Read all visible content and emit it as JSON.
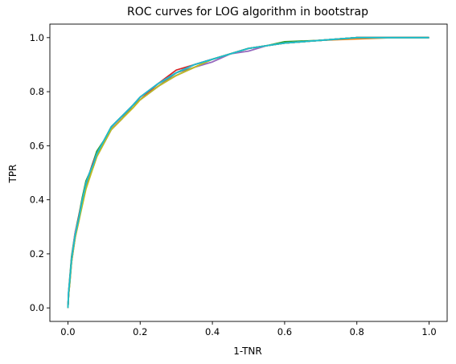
{
  "chart_data": {
    "type": "line",
    "title": "ROC curves for LOG algorithm in bootstrap",
    "xlabel": "1-TNR",
    "ylabel": "TPR",
    "xlim": [
      -0.05,
      1.05
    ],
    "ylim": [
      -0.05,
      1.05
    ],
    "xticks": [
      0.0,
      0.2,
      0.4,
      0.6,
      0.8,
      1.0
    ],
    "yticks": [
      0.0,
      0.2,
      0.4,
      0.6,
      0.8,
      1.0
    ],
    "xtick_labels": [
      "0.0",
      "0.2",
      "0.4",
      "0.6",
      "0.8",
      "1.0"
    ],
    "ytick_labels": [
      "0.0",
      "0.2",
      "0.4",
      "0.6",
      "0.8",
      "1.0"
    ],
    "grid": false,
    "legend": "none",
    "series_colors": [
      "#1f77b4",
      "#ff7f0e",
      "#2ca02c",
      "#d62728",
      "#9467bd",
      "#8c564b",
      "#e377c2",
      "#7f7f7f",
      "#bcbd22",
      "#17becf"
    ],
    "series": [
      {
        "x": [
          0.0,
          0.002,
          0.005,
          0.01,
          0.02,
          0.03,
          0.04,
          0.05,
          0.06,
          0.07,
          0.08,
          0.1,
          0.12,
          0.15,
          0.18,
          0.2,
          0.25,
          0.3,
          0.35,
          0.4,
          0.45,
          0.5,
          0.55,
          0.6,
          0.7,
          0.8,
          0.9,
          1.0
        ],
        "y": [
          0.0,
          0.06,
          0.1,
          0.18,
          0.27,
          0.33,
          0.4,
          0.46,
          0.5,
          0.53,
          0.57,
          0.62,
          0.66,
          0.71,
          0.75,
          0.77,
          0.82,
          0.87,
          0.9,
          0.92,
          0.94,
          0.96,
          0.97,
          0.98,
          0.99,
          1.0,
          1.0,
          1.0
        ]
      },
      {
        "x": [
          0.0,
          0.002,
          0.005,
          0.01,
          0.02,
          0.03,
          0.04,
          0.05,
          0.06,
          0.07,
          0.08,
          0.1,
          0.12,
          0.15,
          0.18,
          0.2,
          0.25,
          0.3,
          0.35,
          0.4,
          0.45,
          0.5,
          0.55,
          0.6,
          0.7,
          0.8,
          0.9,
          1.0
        ],
        "y": [
          0.0,
          0.05,
          0.09,
          0.17,
          0.26,
          0.32,
          0.39,
          0.45,
          0.49,
          0.52,
          0.56,
          0.61,
          0.66,
          0.7,
          0.74,
          0.77,
          0.82,
          0.86,
          0.89,
          0.92,
          0.94,
          0.96,
          0.97,
          0.98,
          0.99,
          0.995,
          1.0,
          1.0
        ]
      },
      {
        "x": [
          0.0,
          0.002,
          0.005,
          0.01,
          0.02,
          0.03,
          0.04,
          0.05,
          0.06,
          0.07,
          0.08,
          0.1,
          0.12,
          0.15,
          0.18,
          0.2,
          0.25,
          0.3,
          0.35,
          0.4,
          0.45,
          0.5,
          0.55,
          0.6,
          0.7,
          0.8,
          0.9,
          1.0
        ],
        "y": [
          0.0,
          0.06,
          0.11,
          0.19,
          0.28,
          0.34,
          0.41,
          0.47,
          0.5,
          0.54,
          0.58,
          0.62,
          0.67,
          0.71,
          0.75,
          0.78,
          0.83,
          0.87,
          0.9,
          0.92,
          0.94,
          0.96,
          0.97,
          0.985,
          0.99,
          1.0,
          1.0,
          1.0
        ]
      },
      {
        "x": [
          0.0,
          0.002,
          0.005,
          0.01,
          0.02,
          0.03,
          0.04,
          0.05,
          0.06,
          0.07,
          0.08,
          0.1,
          0.12,
          0.15,
          0.18,
          0.2,
          0.25,
          0.3,
          0.35,
          0.4,
          0.45,
          0.5,
          0.55,
          0.6,
          0.7,
          0.8,
          0.9,
          1.0
        ],
        "y": [
          0.0,
          0.05,
          0.1,
          0.18,
          0.27,
          0.33,
          0.4,
          0.46,
          0.5,
          0.53,
          0.57,
          0.62,
          0.66,
          0.71,
          0.75,
          0.77,
          0.83,
          0.88,
          0.9,
          0.92,
          0.94,
          0.96,
          0.97,
          0.98,
          0.99,
          1.0,
          1.0,
          1.0
        ]
      },
      {
        "x": [
          0.0,
          0.002,
          0.005,
          0.01,
          0.02,
          0.03,
          0.04,
          0.05,
          0.06,
          0.07,
          0.08,
          0.1,
          0.12,
          0.15,
          0.18,
          0.2,
          0.25,
          0.3,
          0.35,
          0.4,
          0.45,
          0.5,
          0.55,
          0.6,
          0.7,
          0.8,
          0.9,
          1.0
        ],
        "y": [
          0.0,
          0.06,
          0.1,
          0.17,
          0.26,
          0.33,
          0.39,
          0.45,
          0.49,
          0.53,
          0.57,
          0.61,
          0.66,
          0.7,
          0.75,
          0.77,
          0.82,
          0.86,
          0.89,
          0.91,
          0.94,
          0.95,
          0.97,
          0.98,
          0.99,
          1.0,
          1.0,
          1.0
        ]
      },
      {
        "x": [
          0.0,
          0.002,
          0.005,
          0.01,
          0.02,
          0.03,
          0.04,
          0.05,
          0.06,
          0.07,
          0.08,
          0.1,
          0.12,
          0.15,
          0.18,
          0.2,
          0.25,
          0.3,
          0.35,
          0.4,
          0.45,
          0.5,
          0.55,
          0.6,
          0.7,
          0.8,
          0.9,
          1.0
        ],
        "y": [
          0.0,
          0.05,
          0.1,
          0.18,
          0.27,
          0.34,
          0.4,
          0.46,
          0.5,
          0.54,
          0.57,
          0.62,
          0.67,
          0.71,
          0.75,
          0.78,
          0.83,
          0.87,
          0.9,
          0.92,
          0.94,
          0.96,
          0.97,
          0.98,
          0.99,
          1.0,
          1.0,
          1.0
        ]
      },
      {
        "x": [
          0.0,
          0.002,
          0.005,
          0.01,
          0.02,
          0.03,
          0.04,
          0.05,
          0.06,
          0.07,
          0.08,
          0.1,
          0.12,
          0.15,
          0.18,
          0.2,
          0.25,
          0.3,
          0.35,
          0.4,
          0.45,
          0.5,
          0.55,
          0.6,
          0.7,
          0.8,
          0.9,
          1.0
        ],
        "y": [
          0.0,
          0.06,
          0.1,
          0.18,
          0.28,
          0.33,
          0.4,
          0.46,
          0.5,
          0.53,
          0.57,
          0.62,
          0.66,
          0.71,
          0.75,
          0.78,
          0.83,
          0.87,
          0.9,
          0.92,
          0.94,
          0.96,
          0.97,
          0.98,
          0.99,
          1.0,
          1.0,
          1.0
        ]
      },
      {
        "x": [
          0.0,
          0.002,
          0.005,
          0.01,
          0.02,
          0.03,
          0.04,
          0.05,
          0.06,
          0.07,
          0.08,
          0.1,
          0.12,
          0.15,
          0.18,
          0.2,
          0.25,
          0.3,
          0.35,
          0.4,
          0.45,
          0.5,
          0.55,
          0.6,
          0.7,
          0.8,
          0.9,
          1.0
        ],
        "y": [
          0.0,
          0.05,
          0.09,
          0.17,
          0.27,
          0.33,
          0.39,
          0.45,
          0.49,
          0.53,
          0.56,
          0.61,
          0.66,
          0.7,
          0.75,
          0.77,
          0.82,
          0.87,
          0.89,
          0.92,
          0.94,
          0.96,
          0.97,
          0.98,
          0.99,
          1.0,
          1.0,
          1.0
        ]
      },
      {
        "x": [
          0.0,
          0.002,
          0.005,
          0.01,
          0.02,
          0.03,
          0.04,
          0.05,
          0.06,
          0.07,
          0.08,
          0.1,
          0.12,
          0.15,
          0.18,
          0.2,
          0.25,
          0.3,
          0.35,
          0.4,
          0.45,
          0.5,
          0.55,
          0.6,
          0.7,
          0.8,
          0.9,
          1.0
        ],
        "y": [
          0.0,
          0.05,
          0.09,
          0.17,
          0.26,
          0.32,
          0.38,
          0.44,
          0.48,
          0.52,
          0.56,
          0.61,
          0.66,
          0.7,
          0.74,
          0.77,
          0.82,
          0.86,
          0.89,
          0.92,
          0.94,
          0.96,
          0.97,
          0.98,
          0.99,
          1.0,
          1.0,
          1.0
        ]
      },
      {
        "x": [
          0.0,
          0.002,
          0.005,
          0.01,
          0.02,
          0.03,
          0.04,
          0.05,
          0.06,
          0.07,
          0.08,
          0.1,
          0.12,
          0.15,
          0.18,
          0.2,
          0.25,
          0.3,
          0.35,
          0.4,
          0.45,
          0.5,
          0.55,
          0.6,
          0.7,
          0.8,
          0.9,
          1.0
        ],
        "y": [
          0.0,
          0.06,
          0.1,
          0.18,
          0.27,
          0.33,
          0.4,
          0.46,
          0.5,
          0.53,
          0.57,
          0.62,
          0.67,
          0.71,
          0.75,
          0.78,
          0.83,
          0.87,
          0.9,
          0.92,
          0.94,
          0.96,
          0.97,
          0.98,
          0.99,
          1.0,
          1.0,
          1.0
        ]
      }
    ]
  }
}
